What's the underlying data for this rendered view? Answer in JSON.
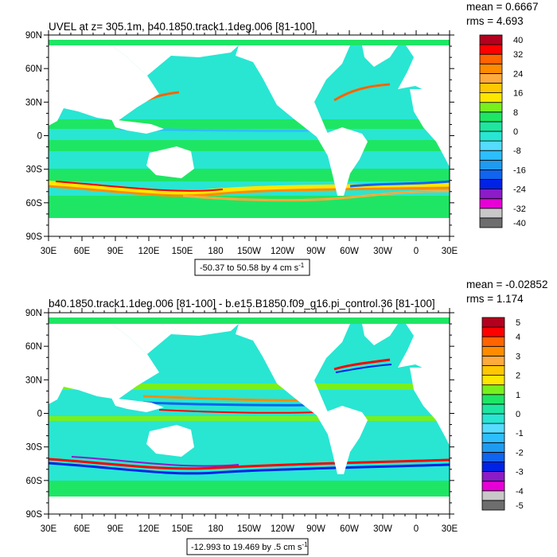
{
  "colors": {
    "land": "#ffffff",
    "frame": "#000000",
    "scale": [
      "#6e6e6e",
      "#c8c8c8",
      "#e600d6",
      "#8c1bc8",
      "#0022e6",
      "#0f64f0",
      "#1e9bf0",
      "#2dbeff",
      "#55dcff",
      "#28e6d2",
      "#1ee6a0",
      "#1ee664",
      "#78f01e",
      "#ffe600",
      "#ffc800",
      "#ffaa3c",
      "#ff8c00",
      "#ff6400",
      "#ff0000",
      "#b4001e"
    ]
  },
  "chart_data": [
    {
      "type": "heatmap",
      "title": "UVEL at z= 305.1m, b40.1850.track1.1deg.006 [81-100]",
      "stats": {
        "mean": "mean = 0.6667",
        "rms": "rms = 4.693"
      },
      "xticks": [
        "30E",
        "60E",
        "90E",
        "120E",
        "150E",
        "180",
        "150W",
        "120W",
        "90W",
        "60W",
        "30W",
        "0",
        "30E"
      ],
      "yticks": [
        "90N",
        "60N",
        "30N",
        "0",
        "30S",
        "60S",
        "90S"
      ],
      "xlim": [
        30,
        390
      ],
      "ylim": [
        -90,
        90
      ],
      "colorbar": {
        "min": -40,
        "max": 40,
        "step": 4,
        "labels": [
          "40",
          "32",
          "24",
          "16",
          "8",
          "0",
          "-8",
          "-16",
          "-24",
          "-32",
          "-40"
        ]
      },
      "range_caption": "-50.37 to 50.58 by 4 cm s",
      "range_caption_exp": "-1"
    },
    {
      "type": "heatmap",
      "title": "b40.1850.track1.1deg.006 [81-100] - b.e15.B1850.f09_g16.pi_control.36 [81-100]",
      "stats": {
        "mean": "mean = -0.02852",
        "rms": "rms = 1.174"
      },
      "xticks": [
        "30E",
        "60E",
        "90E",
        "120E",
        "150E",
        "180",
        "150W",
        "120W",
        "90W",
        "60W",
        "30W",
        "0",
        "30E"
      ],
      "yticks": [
        "90N",
        "60N",
        "30N",
        "0",
        "30S",
        "60S",
        "90S"
      ],
      "xlim": [
        30,
        390
      ],
      "ylim": [
        -90,
        90
      ],
      "colorbar": {
        "min": -5,
        "max": 5,
        "step": 0.5,
        "labels": [
          "5",
          "4",
          "3",
          "2",
          "1",
          "0",
          "-1",
          "-2",
          "-3",
          "-4",
          "-5"
        ]
      },
      "range_caption": "-12.993 to 19.469 by .5 cm s",
      "range_caption_exp": "-1"
    }
  ]
}
